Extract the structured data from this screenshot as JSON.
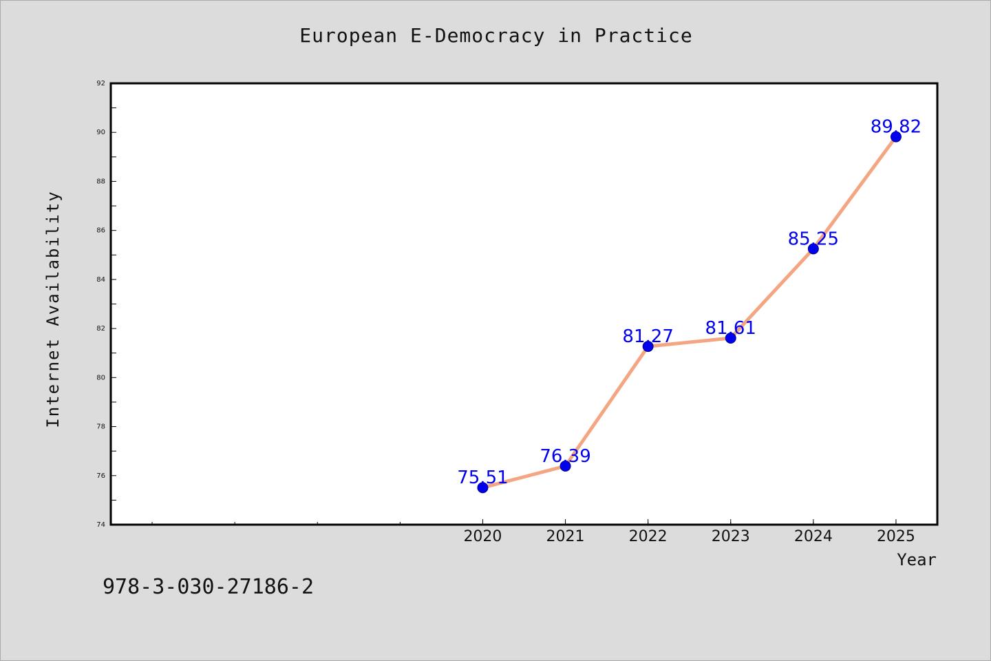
{
  "chart_data": {
    "type": "line",
    "title": "European E-Democracy in Practice",
    "xlabel": "Year",
    "ylabel": "Internet Availability",
    "x": [
      2020,
      2021,
      2022,
      2023,
      2024,
      2025
    ],
    "x_tick_labels": [
      "2020",
      "2021",
      "2022",
      "2023",
      "2024",
      "2025"
    ],
    "xlim": [
      2015.5,
      2025.5
    ],
    "series": [
      {
        "values": [
          75.51,
          76.39,
          81.27,
          81.61,
          85.25,
          89.82
        ],
        "data_labels": [
          "75.51",
          "76.39",
          "81.27",
          "81.61",
          "85.25",
          "89.82"
        ]
      }
    ],
    "ylim": [
      74,
      92
    ],
    "y_ticks": [
      74,
      76,
      78,
      80,
      82,
      84,
      86,
      88,
      90,
      92
    ],
    "y_tick_labels": [
      "74",
      "76",
      "78",
      "80",
      "82",
      "84",
      "86",
      "88",
      "90",
      "92"
    ],
    "grid": false,
    "legend": "none",
    "line_color": "#f4a582",
    "marker_color": "#0000ee",
    "label_color": "#0000ee"
  },
  "footer": {
    "isbn": "978-3-030-27186-2"
  }
}
